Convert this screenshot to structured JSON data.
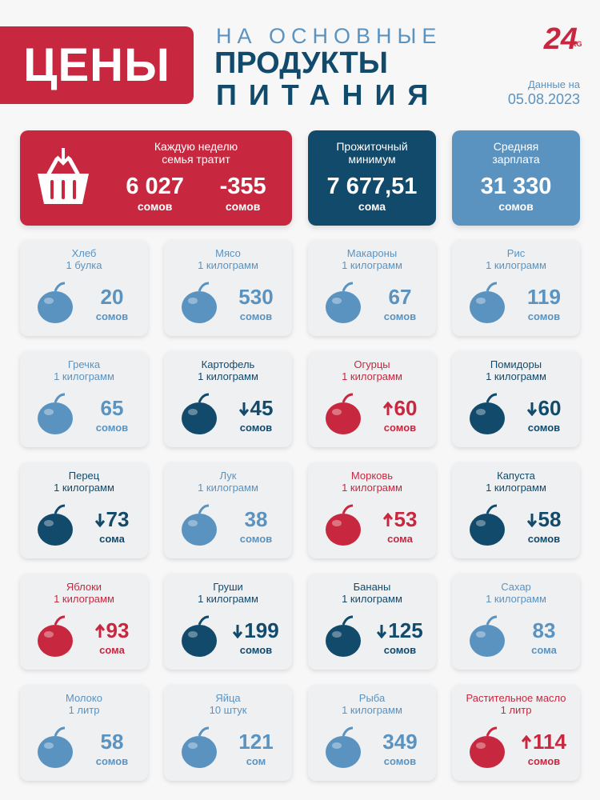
{
  "header": {
    "badge": "ЦЕНЫ",
    "title_lines": [
      "НА ОСНОВНЫЕ",
      "ПРОДУКТЫ",
      "ПИТАНИЯ"
    ],
    "logo": "24",
    "logo_suffix": "KG",
    "date_label": "Данные на",
    "date": "05.08.2023"
  },
  "summary": [
    {
      "label_lines": [
        "Каждую неделю",
        "семья тратит"
      ],
      "color": "#c8283f",
      "items": [
        {
          "value": "6 027",
          "currency": "сомов"
        },
        {
          "value": "-355",
          "currency": "сомов"
        }
      ]
    },
    {
      "label_lines": [
        "Прожиточный",
        "минимум"
      ],
      "color": "#124a6b",
      "items": [
        {
          "value": "7 677,51",
          "currency": "сома"
        }
      ]
    },
    {
      "label_lines": [
        "Средняя",
        "зарплата"
      ],
      "color": "#5b93c0",
      "items": [
        {
          "value": "31 330",
          "currency": "сомов"
        }
      ]
    }
  ],
  "products": [
    {
      "name": "Хлеб",
      "unit": "1 булка",
      "value": "20",
      "currency": "сомов",
      "trend": "none"
    },
    {
      "name": "Мясо",
      "unit": "1 килограмм",
      "value": "530",
      "currency": "сомов",
      "trend": "none"
    },
    {
      "name": "Макароны",
      "unit": "1 килограмм",
      "value": "67",
      "currency": "сомов",
      "trend": "none"
    },
    {
      "name": "Рис",
      "unit": "1 килограмм",
      "value": "119",
      "currency": "сомов",
      "trend": "none"
    },
    {
      "name": "Гречка",
      "unit": "1 килограмм",
      "value": "65",
      "currency": "сомов",
      "trend": "none"
    },
    {
      "name": "Картофель",
      "unit": "1 килограмм",
      "value": "45",
      "currency": "сомов",
      "trend": "down"
    },
    {
      "name": "Огурцы",
      "unit": "1 килограмм",
      "value": "60",
      "currency": "сомов",
      "trend": "up"
    },
    {
      "name": "Помидоры",
      "unit": "1 килограмм",
      "value": "60",
      "currency": "сомов",
      "trend": "down"
    },
    {
      "name": "Перец",
      "unit": "1 килограмм",
      "value": "73",
      "currency": "сома",
      "trend": "down"
    },
    {
      "name": "Лук",
      "unit": "1 килограмм",
      "value": "38",
      "currency": "сомов",
      "trend": "none"
    },
    {
      "name": "Морковь",
      "unit": "1 килограмм",
      "value": "53",
      "currency": "сома",
      "trend": "up"
    },
    {
      "name": "Капуста",
      "unit": "1 килограмм",
      "value": "58",
      "currency": "сомов",
      "trend": "down"
    },
    {
      "name": "Яблоки",
      "unit": "1 килограмм",
      "value": "93",
      "currency": "сома",
      "trend": "up"
    },
    {
      "name": "Груши",
      "unit": "1 килограмм",
      "value": "199",
      "currency": "сомов",
      "trend": "down"
    },
    {
      "name": "Бананы",
      "unit": "1 килограмм",
      "value": "125",
      "currency": "сомов",
      "trend": "down"
    },
    {
      "name": "Сахар",
      "unit": "1 килограмм",
      "value": "83",
      "currency": "сома",
      "trend": "none"
    },
    {
      "name": "Молоко",
      "unit": "1 литр",
      "value": "58",
      "currency": "сомов",
      "trend": "none"
    },
    {
      "name": "Яйца",
      "unit": "10 штук",
      "value": "121",
      "currency": "сом",
      "trend": "none"
    },
    {
      "name": "Рыба",
      "unit": "1 килограмм",
      "value": "349",
      "currency": "сомов",
      "trend": "none"
    },
    {
      "name": "Растительное масло",
      "unit": "1 литр",
      "value": "114",
      "currency": "сомов",
      "trend": "up"
    }
  ]
}
